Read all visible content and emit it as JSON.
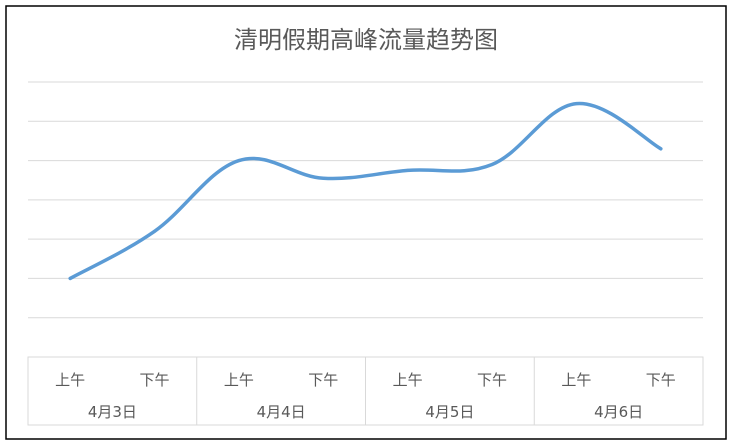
{
  "chart_data": {
    "type": "line",
    "title": "清明假期高峰流量趋势图",
    "categories": [
      "上午",
      "下午",
      "上午",
      "下午",
      "上午",
      "下午",
      "上午",
      "下午"
    ],
    "groups": [
      {
        "label": "4月3日",
        "categories": [
          "上午",
          "下午"
        ]
      },
      {
        "label": "4月4日",
        "categories": [
          "上午",
          "下午"
        ]
      },
      {
        "label": "4月5日",
        "categories": [
          "上午",
          "下午"
        ]
      },
      {
        "label": "4月6日",
        "categories": [
          "上午",
          "下午"
        ]
      }
    ],
    "series": [
      {
        "values": [
          2.0,
          3.2,
          5.0,
          4.55,
          4.75,
          4.9,
          6.45,
          5.3
        ],
        "color": "#5b9bd5"
      }
    ],
    "ylim": [
      0,
      7
    ],
    "grid": true,
    "legend": "none",
    "xlabel": "",
    "ylabel": ""
  }
}
